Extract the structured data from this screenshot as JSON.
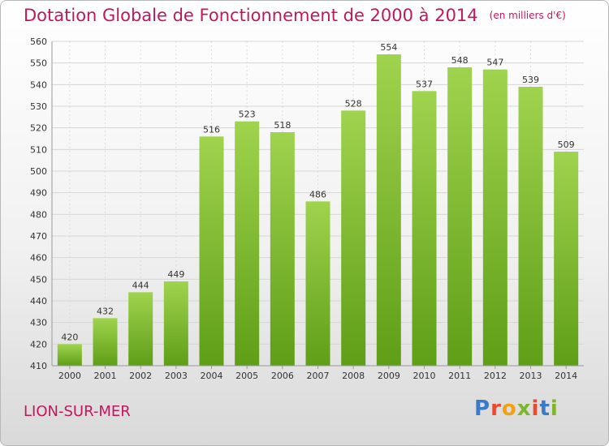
{
  "header": {
    "title": "Dotation Globale de Fonctionnement de 2000 à 2014",
    "unit": "(en milliers d'€)"
  },
  "footer": {
    "town": "LION-SUR-MER",
    "logo_text": "Proxiti"
  },
  "colors": {
    "title": "#c0185e",
    "bar_top": "#a0d34e",
    "bar_bottom": "#5f9e17",
    "logo_letters": [
      "#3a7bc8",
      "#e84a2e",
      "#f2a20c",
      "#7fb52c",
      "#e84a2e",
      "#3a7bc8",
      "#7fb52c"
    ]
  },
  "chart_data": {
    "type": "bar",
    "title": "Dotation Globale de Fonctionnement de 2000 à 2014",
    "subtitle": "(en milliers d'€)",
    "xlabel": "",
    "ylabel": "",
    "categories": [
      "2000",
      "2001",
      "2002",
      "2003",
      "2004",
      "2005",
      "2006",
      "2007",
      "2008",
      "2009",
      "2010",
      "2011",
      "2012",
      "2013",
      "2014"
    ],
    "values": [
      420,
      432,
      444,
      449,
      516,
      523,
      518,
      486,
      528,
      554,
      537,
      548,
      547,
      539,
      509
    ],
    "ylim": [
      410,
      560
    ],
    "yticks": [
      410,
      420,
      430,
      440,
      450,
      460,
      470,
      480,
      490,
      500,
      510,
      520,
      530,
      540,
      550,
      560
    ],
    "grid": true,
    "legend": "none"
  }
}
